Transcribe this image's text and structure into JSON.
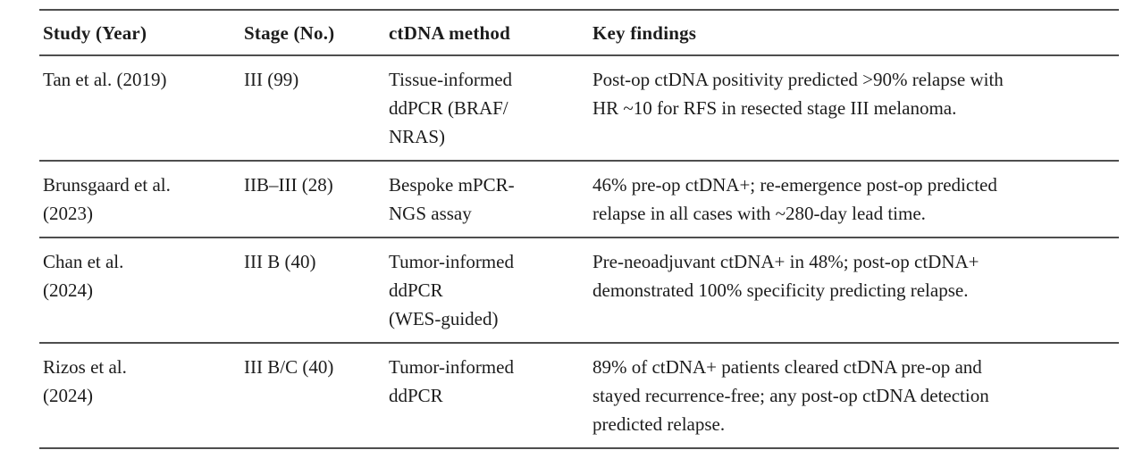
{
  "table": {
    "colors": {
      "rule": "#4e4e4e",
      "rule_shadow": "#c8c8c8",
      "text": "#1c1c1c",
      "background": "#ffffff"
    },
    "columns": [
      {
        "label": "Study (Year)"
      },
      {
        "label": "Stage (No.)"
      },
      {
        "label": "ctDNA method"
      },
      {
        "label": "Key findings"
      }
    ],
    "rows": [
      {
        "study": "Tan et al. (2019)",
        "stage": "III (99)",
        "method": "Tissue-informed\nddPCR (BRAF/\nNRAS)",
        "findings": "Post-op ctDNA positivity predicted >90% relapse with\nHR ~10 for RFS in resected stage III melanoma."
      },
      {
        "study": "Brunsgaard et al.\n(2023)",
        "stage": "IIB–III (28)",
        "method": "Bespoke mPCR-\nNGS assay",
        "findings": "46% pre-op ctDNA+; re-emergence post-op predicted\nrelapse in all cases with ~280-day lead time."
      },
      {
        "study": "Chan et al.\n(2024)",
        "stage": "III B (40)",
        "method": "Tumor-informed\nddPCR\n(WES-guided)",
        "findings": "Pre-neoadjuvant ctDNA+ in 48%; post-op ctDNA+\ndemonstrated 100% specificity predicting relapse."
      },
      {
        "study": "Rizos et al.\n(2024)",
        "stage": "III B/C (40)",
        "method": "Tumor-informed\nddPCR",
        "findings": "89% of ctDNA+ patients cleared ctDNA pre-op and\nstayed recurrence-free; any post-op ctDNA detection\npredicted relapse."
      }
    ]
  }
}
